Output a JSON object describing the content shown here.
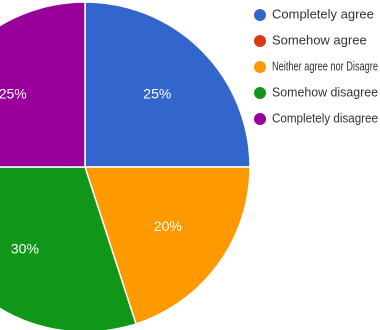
{
  "chart_data": {
    "type": "pie",
    "title": "",
    "slices": [
      {
        "label": "Completely agree",
        "value": 25,
        "value_label": "25%",
        "color": "#3366cc"
      },
      {
        "label": "Somehow agree",
        "value": 0,
        "value_label": "",
        "color": "#dc3912"
      },
      {
        "label": "Neither agree nor Disagre",
        "value": 20,
        "value_label": "20%",
        "color": "#ff9900"
      },
      {
        "label": "Somehow disagree",
        "value": 30,
        "value_label": "30%",
        "color": "#109618"
      },
      {
        "label": "Completely disagree",
        "value": 25,
        "value_label": "25%",
        "color": "#990099"
      }
    ],
    "start": "12 o'clock",
    "direction": "clockwise",
    "legend": "right"
  }
}
